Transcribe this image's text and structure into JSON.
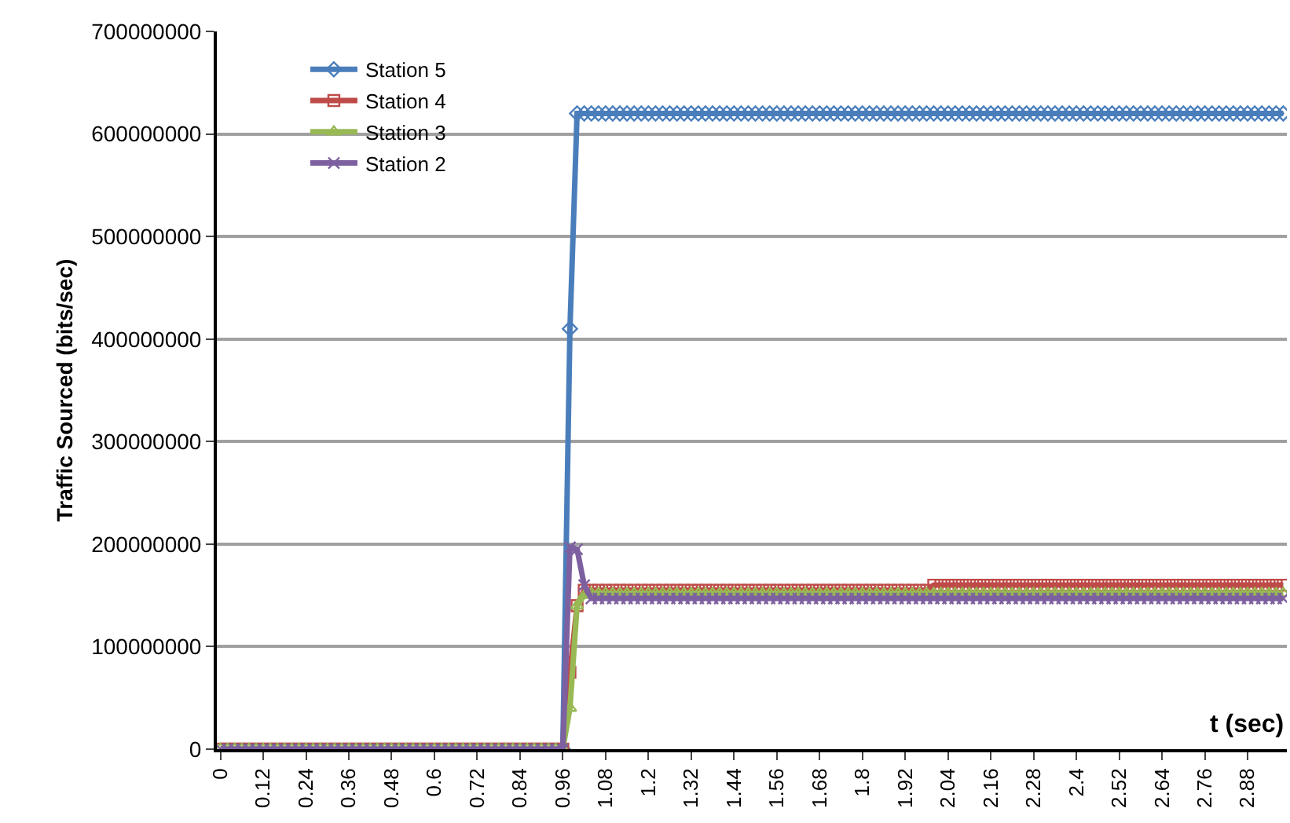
{
  "chart_data": {
    "type": "line",
    "xlabel": "t (sec)",
    "ylabel": "Traffic Sourced (bits/sec)",
    "x": [
      0,
      0.02,
      0.04,
      0.06,
      0.08,
      0.1,
      0.12,
      0.14,
      0.16,
      0.18,
      0.2,
      0.22,
      0.24,
      0.26,
      0.28,
      0.3,
      0.32,
      0.34,
      0.36,
      0.38,
      0.4,
      0.42,
      0.44,
      0.46,
      0.48,
      0.5,
      0.52,
      0.54,
      0.56,
      0.58,
      0.6,
      0.62,
      0.64,
      0.66,
      0.68,
      0.7,
      0.72,
      0.74,
      0.76,
      0.78,
      0.8,
      0.82,
      0.84,
      0.86,
      0.88,
      0.9,
      0.92,
      0.94,
      0.96,
      0.98,
      1,
      1.02,
      1.04,
      1.06,
      1.08,
      1.1,
      1.12,
      1.14,
      1.16,
      1.18,
      1.2,
      1.22,
      1.24,
      1.26,
      1.28,
      1.3,
      1.32,
      1.34,
      1.36,
      1.38,
      1.4,
      1.42,
      1.44,
      1.46,
      1.48,
      1.5,
      1.52,
      1.54,
      1.56,
      1.58,
      1.6,
      1.62,
      1.64,
      1.66,
      1.68,
      1.7,
      1.72,
      1.74,
      1.76,
      1.78,
      1.8,
      1.82,
      1.84,
      1.86,
      1.88,
      1.9,
      1.92,
      1.94,
      1.96,
      1.98,
      2,
      2.02,
      2.04,
      2.06,
      2.08,
      2.1,
      2.12,
      2.14,
      2.16,
      2.18,
      2.2,
      2.22,
      2.24,
      2.26,
      2.28,
      2.3,
      2.32,
      2.34,
      2.36,
      2.38,
      2.4,
      2.42,
      2.44,
      2.46,
      2.48,
      2.5,
      2.52,
      2.54,
      2.56,
      2.58,
      2.6,
      2.62,
      2.64,
      2.66,
      2.68,
      2.7,
      2.72,
      2.74,
      2.76,
      2.78,
      2.8,
      2.82,
      2.84,
      2.86,
      2.88,
      2.9,
      2.92,
      2.94,
      2.96,
      2.98
    ],
    "series": [
      {
        "name": "Station 5",
        "color": "#4a7ebb",
        "marker": "diamond",
        "values": [
          null,
          null,
          null,
          null,
          null,
          null,
          null,
          null,
          null,
          null,
          null,
          null,
          null,
          null,
          null,
          null,
          null,
          null,
          null,
          null,
          null,
          null,
          null,
          null,
          null,
          null,
          null,
          null,
          null,
          null,
          null,
          null,
          null,
          null,
          null,
          null,
          null,
          null,
          null,
          null,
          null,
          null,
          null,
          null,
          null,
          null,
          null,
          null,
          0,
          410000000,
          620000000,
          620000000,
          620000000,
          620000000,
          620000000,
          620000000,
          620000000,
          620000000,
          620000000,
          620000000,
          620000000,
          620000000,
          620000000,
          620000000,
          620000000,
          620000000,
          620000000,
          620000000,
          620000000,
          620000000,
          620000000,
          620000000,
          620000000,
          620000000,
          620000000,
          620000000,
          620000000,
          620000000,
          620000000,
          620000000,
          620000000,
          620000000,
          620000000,
          620000000,
          620000000,
          620000000,
          620000000,
          620000000,
          620000000,
          620000000,
          620000000,
          620000000,
          620000000,
          620000000,
          620000000,
          620000000,
          620000000,
          620000000,
          620000000,
          620000000,
          620000000,
          620000000,
          620000000,
          620000000,
          620000000,
          620000000,
          620000000,
          620000000,
          620000000,
          620000000,
          620000000,
          620000000,
          620000000,
          620000000,
          620000000,
          620000000,
          620000000,
          620000000,
          620000000,
          620000000,
          620000000,
          620000000,
          620000000,
          620000000,
          620000000,
          620000000,
          620000000,
          620000000,
          620000000,
          620000000,
          620000000,
          620000000,
          620000000,
          620000000,
          620000000,
          620000000,
          620000000,
          620000000,
          620000000,
          620000000,
          620000000,
          620000000,
          620000000,
          620000000,
          620000000,
          620000000,
          620000000,
          620000000,
          620000000,
          620000000
        ]
      },
      {
        "name": "Station 4",
        "color": "#be4b48",
        "marker": "square",
        "values": [
          0,
          0,
          0,
          0,
          0,
          0,
          0,
          0,
          0,
          0,
          0,
          0,
          0,
          0,
          0,
          0,
          0,
          0,
          0,
          0,
          0,
          0,
          0,
          0,
          0,
          0,
          0,
          0,
          0,
          0,
          0,
          0,
          0,
          0,
          0,
          0,
          0,
          0,
          0,
          0,
          0,
          0,
          0,
          0,
          0,
          0,
          0,
          0,
          0,
          75000000,
          140000000,
          155000000,
          155000000,
          155000000,
          155000000,
          155000000,
          155000000,
          155000000,
          155000000,
          155000000,
          155000000,
          155000000,
          155000000,
          155000000,
          155000000,
          155000000,
          155000000,
          155000000,
          155000000,
          155000000,
          155000000,
          155000000,
          155000000,
          155000000,
          155000000,
          155000000,
          155000000,
          155000000,
          155000000,
          155000000,
          155000000,
          155000000,
          155000000,
          155000000,
          155000000,
          155000000,
          155000000,
          155000000,
          155000000,
          155000000,
          155000000,
          155000000,
          155000000,
          155000000,
          155000000,
          155000000,
          155000000,
          155000000,
          155000000,
          155000000,
          160000000,
          160000000,
          160000000,
          160000000,
          160000000,
          160000000,
          160000000,
          160000000,
          160000000,
          160000000,
          160000000,
          160000000,
          160000000,
          160000000,
          160000000,
          160000000,
          160000000,
          160000000,
          160000000,
          160000000,
          160000000,
          160000000,
          160000000,
          160000000,
          160000000,
          160000000,
          160000000,
          160000000,
          160000000,
          160000000,
          160000000,
          160000000,
          160000000,
          160000000,
          160000000,
          160000000,
          160000000,
          160000000,
          160000000,
          160000000,
          160000000,
          160000000,
          160000000,
          160000000,
          160000000,
          160000000,
          160000000,
          160000000,
          160000000,
          160000000
        ]
      },
      {
        "name": "Station 3",
        "color": "#98b954",
        "marker": "triangle",
        "values": [
          0,
          0,
          0,
          0,
          0,
          0,
          0,
          0,
          0,
          0,
          0,
          0,
          0,
          0,
          0,
          0,
          0,
          0,
          0,
          0,
          0,
          0,
          0,
          0,
          0,
          0,
          0,
          0,
          0,
          0,
          0,
          0,
          0,
          0,
          0,
          0,
          0,
          0,
          0,
          0,
          0,
          0,
          0,
          0,
          0,
          0,
          0,
          0,
          0,
          40000000,
          140000000,
          150000000,
          152000000,
          152000000,
          152000000,
          152000000,
          152000000,
          152000000,
          152000000,
          152000000,
          152000000,
          152000000,
          152000000,
          152000000,
          152000000,
          152000000,
          152000000,
          152000000,
          152000000,
          152000000,
          152000000,
          152000000,
          152000000,
          152000000,
          152000000,
          152000000,
          152000000,
          152000000,
          152000000,
          152000000,
          152000000,
          152000000,
          152000000,
          152000000,
          152000000,
          152000000,
          152000000,
          152000000,
          152000000,
          152000000,
          152000000,
          152000000,
          152000000,
          152000000,
          152000000,
          152000000,
          152000000,
          152000000,
          152000000,
          152000000,
          152000000,
          152000000,
          152000000,
          152000000,
          152000000,
          152000000,
          152000000,
          152000000,
          152000000,
          152000000,
          152000000,
          152000000,
          152000000,
          152000000,
          152000000,
          152000000,
          152000000,
          152000000,
          152000000,
          152000000,
          152000000,
          152000000,
          152000000,
          152000000,
          152000000,
          152000000,
          152000000,
          152000000,
          152000000,
          152000000,
          152000000,
          152000000,
          152000000,
          152000000,
          152000000,
          152000000,
          152000000,
          152000000,
          152000000,
          152000000,
          152000000,
          152000000,
          152000000,
          152000000,
          152000000,
          152000000,
          152000000,
          152000000,
          152000000,
          152000000
        ]
      },
      {
        "name": "Station 2",
        "color": "#7d60a0",
        "marker": "cross",
        "values": [
          0,
          0,
          0,
          0,
          0,
          0,
          0,
          0,
          0,
          0,
          0,
          0,
          0,
          0,
          0,
          0,
          0,
          0,
          0,
          0,
          0,
          0,
          0,
          0,
          0,
          0,
          0,
          0,
          0,
          0,
          0,
          0,
          0,
          0,
          0,
          0,
          0,
          0,
          0,
          0,
          0,
          0,
          0,
          0,
          0,
          0,
          0,
          0,
          0,
          197000000,
          195000000,
          160000000,
          147000000,
          147000000,
          147000000,
          147000000,
          147000000,
          147000000,
          147000000,
          147000000,
          147000000,
          147000000,
          147000000,
          147000000,
          147000000,
          147000000,
          147000000,
          147000000,
          147000000,
          147000000,
          147000000,
          147000000,
          147000000,
          147000000,
          147000000,
          147000000,
          147000000,
          147000000,
          147000000,
          147000000,
          147000000,
          147000000,
          147000000,
          147000000,
          147000000,
          147000000,
          147000000,
          147000000,
          147000000,
          147000000,
          147000000,
          147000000,
          147000000,
          147000000,
          147000000,
          147000000,
          147000000,
          147000000,
          147000000,
          147000000,
          147000000,
          147000000,
          147000000,
          147000000,
          147000000,
          147000000,
          147000000,
          147000000,
          147000000,
          147000000,
          147000000,
          147000000,
          147000000,
          147000000,
          147000000,
          147000000,
          147000000,
          147000000,
          147000000,
          147000000,
          147000000,
          147000000,
          147000000,
          147000000,
          147000000,
          147000000,
          147000000,
          147000000,
          147000000,
          147000000,
          147000000,
          147000000,
          147000000,
          147000000,
          147000000,
          147000000,
          147000000,
          147000000,
          147000000,
          147000000,
          147000000,
          147000000,
          147000000,
          147000000,
          147000000,
          147000000,
          147000000,
          147000000,
          147000000,
          147000000
        ]
      }
    ],
    "xlim": [
      -0.01,
      2.99
    ],
    "xticks": [
      0,
      0.12,
      0.24,
      0.36,
      0.48,
      0.6,
      0.72,
      0.84,
      0.96,
      1.08,
      1.2,
      1.32,
      1.44,
      1.56,
      1.68,
      1.8,
      1.92,
      2.04,
      2.16,
      2.28,
      2.4,
      2.52,
      2.64,
      2.76,
      2.88
    ],
    "ylim": [
      0,
      700000000
    ],
    "yticks": [
      0,
      100000000,
      200000000,
      300000000,
      400000000,
      500000000,
      600000000,
      700000000
    ],
    "grid": "y",
    "legend": "top left",
    "line_style": "solid"
  }
}
